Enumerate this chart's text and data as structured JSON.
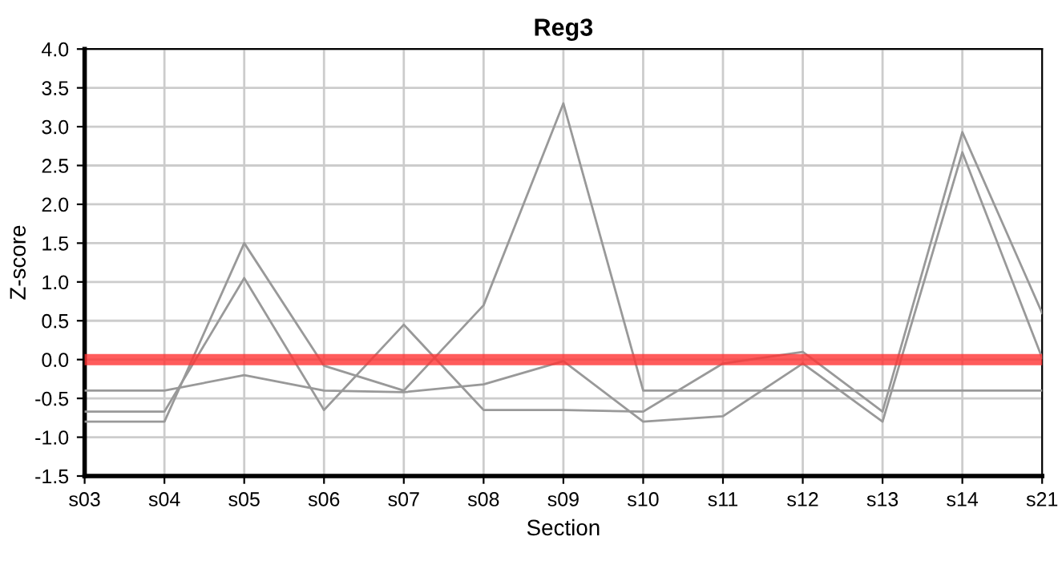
{
  "chart_data": {
    "type": "line",
    "title": "Reg3",
    "xlabel": "Section",
    "ylabel": "Z-score",
    "categories": [
      "s03",
      "s04",
      "s05",
      "s06",
      "s07",
      "s08",
      "s09",
      "s10",
      "s11",
      "s12",
      "s13",
      "s14",
      "s21"
    ],
    "series": [
      {
        "color": "#999999",
        "values": [
          -0.8,
          -0.8,
          1.5,
          -0.08,
          -0.4,
          0.7,
          3.3,
          -0.4,
          -0.4,
          -0.4,
          -0.4,
          -0.4,
          -0.4
        ]
      },
      {
        "color": "#999999",
        "values": [
          -0.67,
          -0.67,
          1.05,
          -0.65,
          0.45,
          -0.65,
          -0.65,
          -0.67,
          -0.05,
          0.1,
          -0.67,
          2.93,
          0.6
        ]
      },
      {
        "color": "#999999",
        "values": [
          -0.4,
          -0.4,
          -0.2,
          -0.4,
          -0.42,
          -0.32,
          -0.02,
          -0.8,
          -0.73,
          -0.05,
          -0.8,
          2.67,
          0.02
        ]
      }
    ],
    "ylim": [
      -1.5,
      4.0
    ],
    "yticks": [
      {
        "value": -1.5,
        "label": "-1.5"
      },
      {
        "value": -1.0,
        "label": "-1.0"
      },
      {
        "value": -0.5,
        "label": "-0.5"
      },
      {
        "value": 0,
        "label": "0.0"
      },
      {
        "value": 0.5,
        "label": "0.5"
      },
      {
        "value": 1.0,
        "label": "1.0"
      },
      {
        "value": 1.5,
        "label": "1.5"
      },
      {
        "value": 2.0,
        "label": "2.0"
      },
      {
        "value": 2.5,
        "label": "2.5"
      },
      {
        "value": 3.0,
        "label": "3.0"
      },
      {
        "value": 3.5,
        "label": "3.5"
      },
      {
        "value": 4.0,
        "label": "4.0"
      }
    ],
    "ref_lines": [
      {
        "axis": "y",
        "value": 0,
        "color": "#ff3333"
      }
    ],
    "grid": true,
    "legend": false,
    "marker": "none",
    "line_style": "solid"
  }
}
